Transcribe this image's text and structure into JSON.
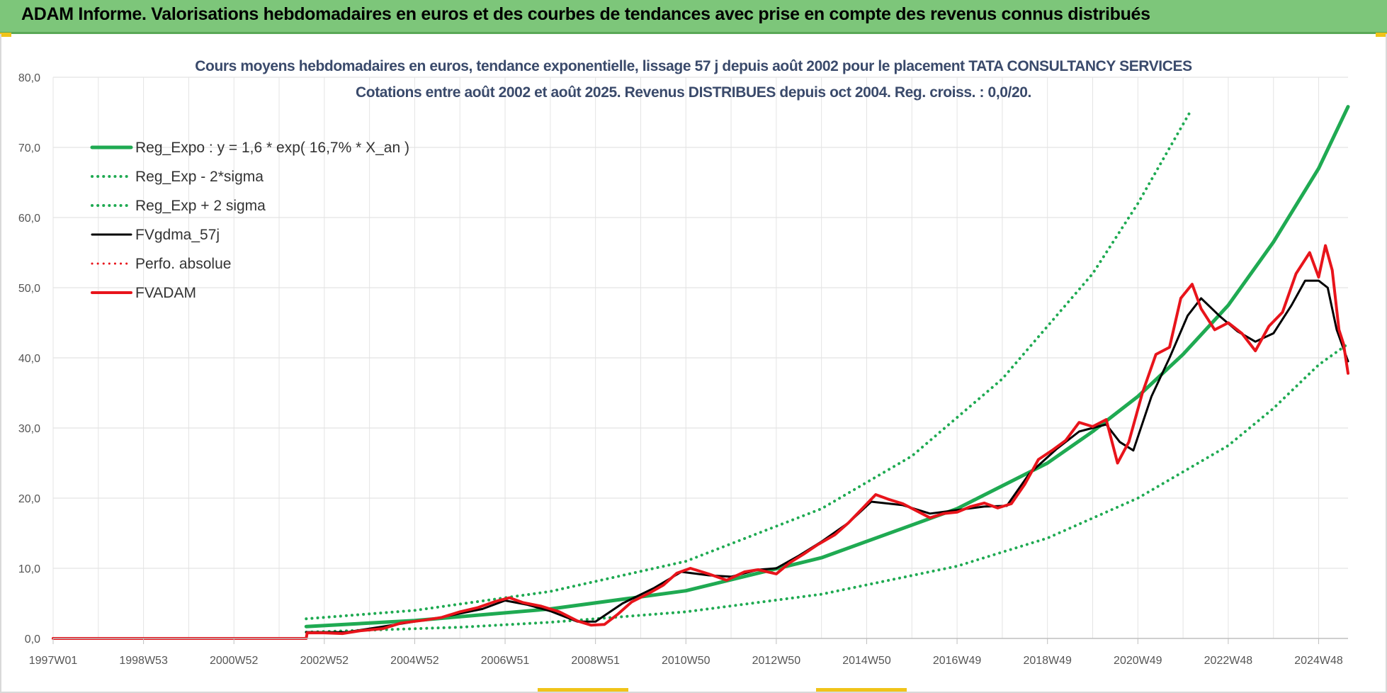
{
  "header": {
    "title": "ADAM Informe. Valorisations hebdomadaires en euros et des courbes de tendances avec prise en compte des revenus connus distribués"
  },
  "chart_data": {
    "type": "line",
    "title": "Cours moyens hebdomadaires en euros, tendance exponentielle, lissage 57 j depuis août 2002 pour le placement TATA CONSULTANCY SERVICES",
    "subtitle": "Cotations entre août 2002 et août 2025. Revenus DISTRIBUES depuis oct 2004. Reg. croiss. : 0,0/20.",
    "xlabel": "",
    "ylabel": "",
    "x_range": [
      1997.0,
      2025.65
    ],
    "ylim": [
      0,
      80
    ],
    "y_ticks": [
      "0,0",
      "10,0",
      "20,0",
      "30,0",
      "40,0",
      "50,0",
      "60,0",
      "70,0",
      "80,0"
    ],
    "x_ticks": [
      {
        "label": "1997W01",
        "x": 1997.0
      },
      {
        "label": "1998W53",
        "x": 1999.0
      },
      {
        "label": "2000W52",
        "x": 2001.0
      },
      {
        "label": "2002W52",
        "x": 2003.0
      },
      {
        "label": "2004W52",
        "x": 2005.0
      },
      {
        "label": "2006W51",
        "x": 2007.0
      },
      {
        "label": "2008W51",
        "x": 2009.0
      },
      {
        "label": "2010W50",
        "x": 2011.0
      },
      {
        "label": "2012W50",
        "x": 2013.0
      },
      {
        "label": "2014W50",
        "x": 2015.0
      },
      {
        "label": "2016W49",
        "x": 2017.0
      },
      {
        "label": "2018W49",
        "x": 2019.0
      },
      {
        "label": "2020W49",
        "x": 2021.0
      },
      {
        "label": "2022W48",
        "x": 2023.0
      },
      {
        "label": "2024W48",
        "x": 2025.0
      }
    ],
    "grid": true,
    "legend_position": "top-left",
    "series": [
      {
        "name": "Reg_Expo : y = 1,6 * exp( 16,7% *  X_an )",
        "color": "#1faa52",
        "style": "solid",
        "width": 5,
        "points": [
          [
            2002.6,
            1.7
          ],
          [
            2005,
            2.55
          ],
          [
            2008,
            4.2
          ],
          [
            2011,
            6.8
          ],
          [
            2014,
            11.5
          ],
          [
            2017,
            18.5
          ],
          [
            2019,
            25.0
          ],
          [
            2020,
            29.5
          ],
          [
            2021,
            34.5
          ],
          [
            2022,
            40.5
          ],
          [
            2023,
            47.5
          ],
          [
            2024,
            56.5
          ],
          [
            2025,
            67.0
          ],
          [
            2025.65,
            75.8
          ]
        ]
      },
      {
        "name": "Reg_Exp - 2*sigma",
        "color": "#1faa52",
        "style": "dotted",
        "width": 4,
        "points": [
          [
            2002.6,
            0.9
          ],
          [
            2006,
            1.6
          ],
          [
            2008,
            2.3
          ],
          [
            2011,
            3.8
          ],
          [
            2014,
            6.3
          ],
          [
            2017,
            10.3
          ],
          [
            2019,
            14.3
          ],
          [
            2021,
            20.0
          ],
          [
            2023,
            27.5
          ],
          [
            2024,
            32.8
          ],
          [
            2025,
            39.0
          ],
          [
            2025.65,
            42.0
          ]
        ]
      },
      {
        "name": "Reg_Exp + 2 sigma",
        "color": "#1faa52",
        "style": "dotted",
        "width": 4,
        "points": [
          [
            2002.6,
            2.8
          ],
          [
            2005,
            4.0
          ],
          [
            2008,
            6.7
          ],
          [
            2011,
            11.0
          ],
          [
            2014,
            18.5
          ],
          [
            2016,
            26.0
          ],
          [
            2018,
            37.0
          ],
          [
            2020,
            52.0
          ],
          [
            2021,
            62.0
          ],
          [
            2022.15,
            75.0
          ]
        ]
      },
      {
        "name": "FVgdma_57j",
        "color": "#000000",
        "style": "solid",
        "width": 3,
        "points": [
          [
            2002.6,
            0.9
          ],
          [
            2003.5,
            0.9
          ],
          [
            2004.5,
            1.9
          ],
          [
            2005.5,
            2.9
          ],
          [
            2006.5,
            4.2
          ],
          [
            2007,
            5.4
          ],
          [
            2007.5,
            4.8
          ],
          [
            2008,
            3.9
          ],
          [
            2008.6,
            2.4
          ],
          [
            2009,
            2.4
          ],
          [
            2009.6,
            5.0
          ],
          [
            2010.3,
            7.2
          ],
          [
            2010.9,
            9.5
          ],
          [
            2011.5,
            9.0
          ],
          [
            2012,
            8.8
          ],
          [
            2012.6,
            9.8
          ],
          [
            2013,
            10.0
          ],
          [
            2013.5,
            11.8
          ],
          [
            2014,
            13.8
          ],
          [
            2014.6,
            16.5
          ],
          [
            2015.1,
            19.5
          ],
          [
            2015.8,
            19.0
          ],
          [
            2016.4,
            17.8
          ],
          [
            2017,
            18.3
          ],
          [
            2017.6,
            18.8
          ],
          [
            2018.1,
            18.9
          ],
          [
            2018.6,
            23.5
          ],
          [
            2019.2,
            27.0
          ],
          [
            2019.7,
            29.5
          ],
          [
            2020.3,
            30.5
          ],
          [
            2020.6,
            28.0
          ],
          [
            2020.9,
            26.8
          ],
          [
            2021.3,
            34.5
          ],
          [
            2021.7,
            40.0
          ],
          [
            2022.1,
            46.0
          ],
          [
            2022.4,
            48.5
          ],
          [
            2022.8,
            46.0
          ],
          [
            2023.2,
            43.8
          ],
          [
            2023.6,
            42.3
          ],
          [
            2024,
            43.5
          ],
          [
            2024.4,
            47.5
          ],
          [
            2024.7,
            51.0
          ],
          [
            2025,
            51.0
          ],
          [
            2025.2,
            50.0
          ],
          [
            2025.4,
            44.0
          ],
          [
            2025.65,
            39.5
          ]
        ]
      },
      {
        "name": "Perfo. absolue",
        "color": "#e8141b",
        "style": "dotted",
        "width": 3,
        "points": []
      },
      {
        "name": "FVADAM",
        "color": "#e8141b",
        "style": "solid",
        "width": 4,
        "points": [
          [
            1997.0,
            0.0
          ],
          [
            2002.6,
            0.0
          ],
          [
            2002.62,
            0.8
          ],
          [
            2003,
            0.8
          ],
          [
            2003.4,
            0.7
          ],
          [
            2003.8,
            1.1
          ],
          [
            2004.3,
            1.4
          ],
          [
            2004.7,
            2.2
          ],
          [
            2005.2,
            2.6
          ],
          [
            2005.6,
            3.0
          ],
          [
            2006,
            3.8
          ],
          [
            2006.4,
            4.4
          ],
          [
            2006.8,
            5.3
          ],
          [
            2007.1,
            5.8
          ],
          [
            2007.4,
            5.1
          ],
          [
            2007.8,
            4.6
          ],
          [
            2008.2,
            3.8
          ],
          [
            2008.6,
            2.5
          ],
          [
            2008.9,
            1.9
          ],
          [
            2009.2,
            2.0
          ],
          [
            2009.5,
            3.5
          ],
          [
            2009.8,
            5.2
          ],
          [
            2010.2,
            6.5
          ],
          [
            2010.5,
            7.6
          ],
          [
            2010.8,
            9.3
          ],
          [
            2011.1,
            10.0
          ],
          [
            2011.5,
            9.2
          ],
          [
            2011.9,
            8.3
          ],
          [
            2012.3,
            9.5
          ],
          [
            2012.6,
            9.8
          ],
          [
            2013,
            9.2
          ],
          [
            2013.3,
            10.8
          ],
          [
            2013.6,
            12.0
          ],
          [
            2013.9,
            13.3
          ],
          [
            2014.3,
            14.8
          ],
          [
            2014.6,
            16.5
          ],
          [
            2014.9,
            18.5
          ],
          [
            2015.2,
            20.5
          ],
          [
            2015.5,
            19.8
          ],
          [
            2015.8,
            19.2
          ],
          [
            2016.1,
            18.2
          ],
          [
            2016.4,
            17.2
          ],
          [
            2016.7,
            17.8
          ],
          [
            2017,
            18.0
          ],
          [
            2017.3,
            18.8
          ],
          [
            2017.6,
            19.3
          ],
          [
            2017.9,
            18.6
          ],
          [
            2018.2,
            19.2
          ],
          [
            2018.5,
            22.0
          ],
          [
            2018.8,
            25.5
          ],
          [
            2019.1,
            26.8
          ],
          [
            2019.4,
            28.2
          ],
          [
            2019.7,
            30.8
          ],
          [
            2020,
            30.2
          ],
          [
            2020.3,
            31.2
          ],
          [
            2020.55,
            25.0
          ],
          [
            2020.8,
            28.0
          ],
          [
            2021.1,
            35.0
          ],
          [
            2021.4,
            40.5
          ],
          [
            2021.7,
            41.5
          ],
          [
            2021.95,
            48.5
          ],
          [
            2022.2,
            50.5
          ],
          [
            2022.4,
            47.0
          ],
          [
            2022.7,
            44.0
          ],
          [
            2023,
            45.0
          ],
          [
            2023.3,
            43.5
          ],
          [
            2023.6,
            41.0
          ],
          [
            2023.9,
            44.5
          ],
          [
            2024.2,
            46.5
          ],
          [
            2024.5,
            52.0
          ],
          [
            2024.8,
            55.0
          ],
          [
            2025,
            51.5
          ],
          [
            2025.15,
            56.0
          ],
          [
            2025.3,
            52.5
          ],
          [
            2025.45,
            44.0
          ],
          [
            2025.55,
            42.0
          ],
          [
            2025.65,
            37.8
          ]
        ]
      }
    ]
  }
}
